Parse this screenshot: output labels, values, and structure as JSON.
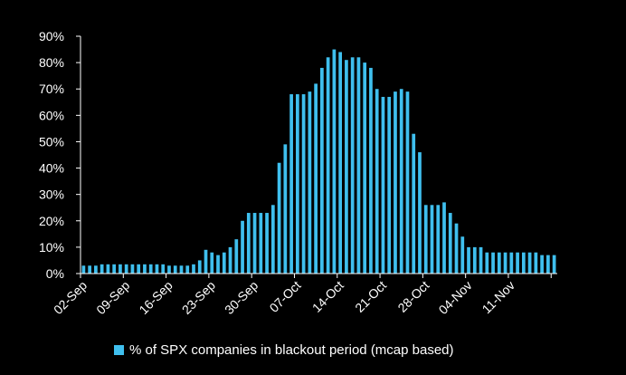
{
  "chart_data": {
    "type": "bar",
    "title": "",
    "xlabel": "",
    "ylabel": "",
    "ylim": [
      0,
      90
    ],
    "ytick_step": 10,
    "ytick_labels": [
      "0%",
      "10%",
      "20%",
      "30%",
      "40%",
      "50%",
      "60%",
      "70%",
      "80%",
      "90%"
    ],
    "xtick_labels": [
      "02-Sep",
      "09-Sep",
      "16-Sep",
      "23-Sep",
      "30-Sep",
      "07-Oct",
      "14-Oct",
      "21-Oct",
      "28-Oct",
      "04-Nov",
      "11-Nov"
    ],
    "xtick_every": 7,
    "grid": false,
    "legend_position": "bottom",
    "colors": {
      "bar": "#3fbfee",
      "background": "#000000",
      "axis": "#ffffff",
      "text": "#ffffff"
    },
    "series": [
      {
        "name": "% of SPX companies in blackout period (mcap based)",
        "values": [
          3,
          3,
          3,
          3.5,
          3.5,
          3.5,
          3.5,
          3.5,
          3.5,
          3.5,
          3.5,
          3.5,
          3.5,
          3.5,
          3,
          3,
          3,
          3,
          3.5,
          5,
          9,
          8,
          7,
          8,
          10,
          13,
          20,
          23,
          23,
          23,
          23,
          26,
          42,
          49,
          68,
          68,
          68,
          69,
          72,
          78,
          82,
          85,
          84,
          81,
          82,
          82,
          80,
          78,
          70,
          67,
          67,
          69,
          70,
          69,
          53,
          46,
          26,
          26,
          26,
          27,
          23,
          19,
          14,
          10,
          10,
          10,
          8,
          8,
          8,
          8,
          8,
          8,
          8,
          8,
          8,
          7,
          7,
          7
        ]
      }
    ]
  }
}
